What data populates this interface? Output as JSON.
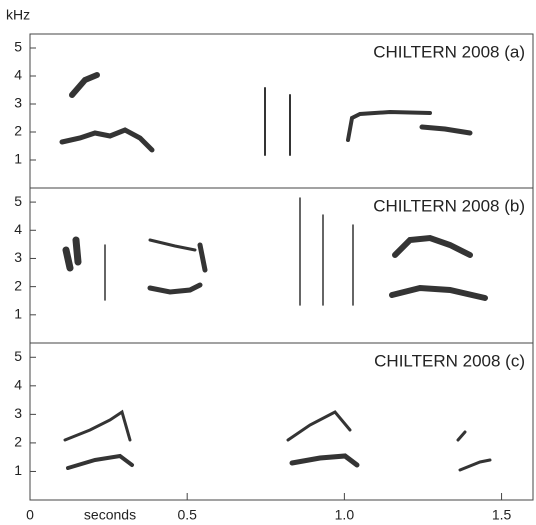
{
  "chart_data": [
    {
      "type": "spectrogram",
      "title": "CHILTERN 2008 (a)",
      "ylabel": "kHz",
      "ylim": [
        0,
        5.5
      ],
      "yticks": [
        1,
        2,
        3,
        4,
        5
      ],
      "xlim": [
        0,
        1.6
      ]
    },
    {
      "type": "spectrogram",
      "title": "CHILTERN 2008 (b)",
      "ylim": [
        0,
        5.5
      ],
      "yticks": [
        1,
        2,
        3,
        4,
        5
      ],
      "xlim": [
        0,
        1.6
      ]
    },
    {
      "type": "spectrogram",
      "title": "CHILTERN 2008 (c)",
      "ylim": [
        0,
        5.5
      ],
      "yticks": [
        1,
        2,
        3,
        4,
        5
      ],
      "xlim": [
        0,
        1.6
      ],
      "xlabel": "seconds",
      "xticks": [
        0,
        0.5,
        {
          "value": 1,
          "label": "1.0"
        },
        1.5
      ]
    }
  ]
}
